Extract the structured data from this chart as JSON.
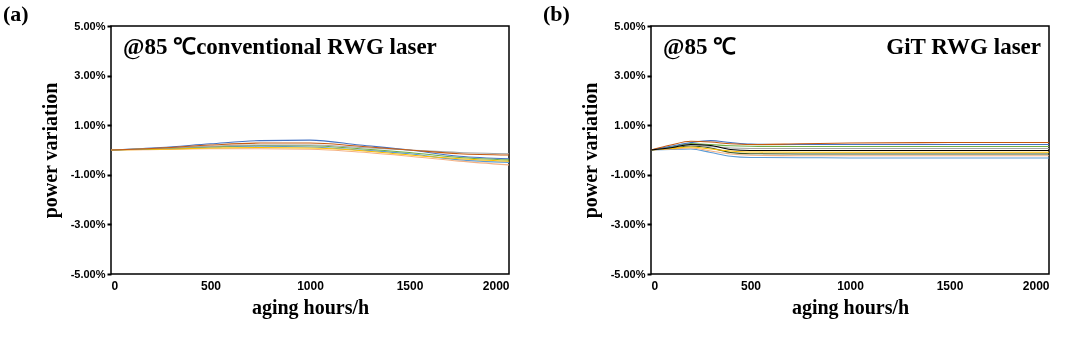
{
  "chart_data": [
    {
      "type": "line",
      "title": "(a)",
      "annotations": [
        "@85 ℃conventional RWG laser"
      ],
      "xlabel": "aging hours/h",
      "ylabel": "power variation",
      "x": [
        0,
        250,
        500,
        750,
        1000,
        1250,
        1500,
        1750,
        2000
      ],
      "xlim": [
        0,
        2000
      ],
      "xticks": [
        0,
        500,
        1000,
        1500,
        2000
      ],
      "ylim": [
        -5,
        5
      ],
      "yticks": [
        {
          "value": -5,
          "label": "-5.00%"
        },
        {
          "value": -3,
          "label": "-3.00%"
        },
        {
          "value": -1,
          "label": "-1.00%"
        },
        {
          "value": 1,
          "label": "1.00%"
        },
        {
          "value": 3,
          "label": "3.00%"
        },
        {
          "value": 5,
          "label": "5.00%"
        }
      ],
      "grid": false,
      "legend": false,
      "series": [
        {
          "color": "#4472c4",
          "values": [
            0,
            0.1,
            0.25,
            0.38,
            0.4,
            0.2,
            0.0,
            -0.25,
            -0.35
          ]
        },
        {
          "color": "#5b9bd5",
          "values": [
            0,
            0.05,
            0.12,
            0.15,
            0.12,
            0.0,
            -0.15,
            -0.4,
            -0.5
          ]
        },
        {
          "color": "#f4b183",
          "values": [
            0,
            0.02,
            0.05,
            0.05,
            0.03,
            -0.08,
            -0.25,
            -0.45,
            -0.6
          ]
        },
        {
          "color": "#ffc000",
          "values": [
            0,
            0.03,
            0.08,
            0.1,
            0.08,
            -0.02,
            -0.2,
            -0.35,
            -0.45
          ]
        },
        {
          "color": "#70ad47",
          "values": [
            0,
            0.06,
            0.13,
            0.18,
            0.17,
            0.05,
            -0.1,
            -0.3,
            -0.4
          ]
        },
        {
          "color": "#a5a5a5",
          "values": [
            0,
            0.07,
            0.15,
            0.2,
            0.2,
            0.1,
            0.0,
            -0.1,
            -0.15
          ]
        },
        {
          "color": "#c55a11",
          "values": [
            0,
            0.08,
            0.2,
            0.28,
            0.28,
            0.15,
            0.0,
            -0.15,
            -0.2
          ]
        }
      ]
    },
    {
      "type": "line",
      "title": "(b)",
      "annotations": [
        "@85 ℃",
        "GiT RWG laser"
      ],
      "xlabel": "aging hours/h",
      "ylabel": "power variation",
      "x": [
        0,
        100,
        200,
        300,
        400,
        500,
        750,
        1000,
        1500,
        2000
      ],
      "xlim": [
        0,
        2000
      ],
      "xticks": [
        0,
        500,
        1000,
        1500,
        2000
      ],
      "ylim": [
        -5,
        5
      ],
      "yticks": [
        {
          "value": -5,
          "label": "-5.00%"
        },
        {
          "value": -3,
          "label": "-3.00%"
        },
        {
          "value": -1,
          "label": "-1.00%"
        },
        {
          "value": 1,
          "label": "1.00%"
        },
        {
          "value": 3,
          "label": "3.00%"
        },
        {
          "value": 5,
          "label": "5.00%"
        }
      ],
      "grid": false,
      "legend": false,
      "series": [
        {
          "color": "#5b9bd5",
          "values": [
            0,
            0.02,
            0.04,
            -0.1,
            -0.25,
            -0.3,
            -0.31,
            -0.32,
            -0.32,
            -0.32
          ]
        },
        {
          "color": "#f4b183",
          "values": [
            0,
            0.04,
            0.08,
            -0.04,
            -0.16,
            -0.21,
            -0.23,
            -0.23,
            -0.23,
            -0.23
          ]
        },
        {
          "color": "#375623",
          "values": [
            0,
            0.08,
            0.16,
            0.08,
            -0.1,
            -0.15,
            -0.16,
            -0.16,
            -0.16,
            -0.16
          ]
        },
        {
          "color": "#ffc000",
          "values": [
            0,
            0.06,
            0.12,
            0.04,
            -0.04,
            -0.08,
            -0.09,
            -0.09,
            -0.09,
            -0.09
          ]
        },
        {
          "color": "#a5a5a5",
          "values": [
            0,
            0.1,
            0.2,
            0.14,
            0.08,
            0.06,
            0.06,
            0.06,
            0.06,
            0.06
          ]
        },
        {
          "color": "#70ad47",
          "values": [
            0,
            0.12,
            0.26,
            0.22,
            0.17,
            0.15,
            0.14,
            0.14,
            0.14,
            0.14
          ]
        },
        {
          "color": "#4472c4",
          "values": [
            0,
            0.15,
            0.3,
            0.38,
            0.3,
            0.24,
            0.22,
            0.22,
            0.22,
            0.22
          ]
        },
        {
          "color": "#c55a11",
          "values": [
            0,
            0.2,
            0.35,
            0.32,
            0.25,
            0.22,
            0.25,
            0.28,
            0.3,
            0.3
          ]
        },
        {
          "color": "#000000",
          "values": [
            0,
            0.09,
            0.22,
            0.18,
            0.02,
            -0.02,
            -0.02,
            -0.02,
            -0.02,
            -0.02
          ]
        }
      ]
    }
  ]
}
